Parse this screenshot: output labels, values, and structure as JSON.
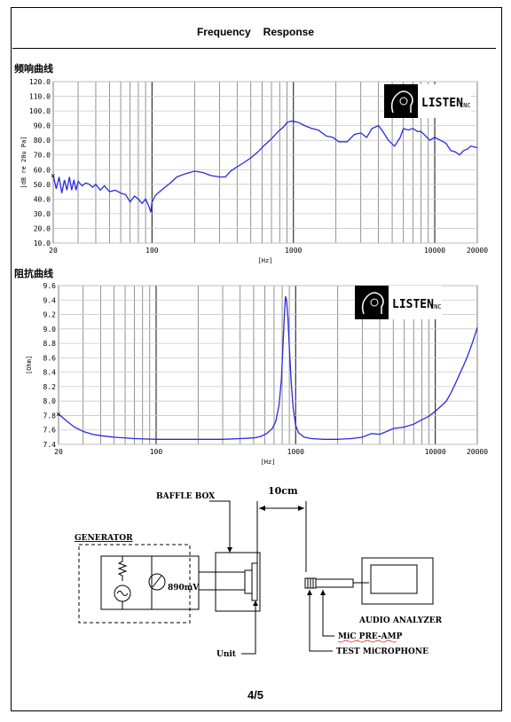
{
  "header": {
    "title_a": "Frequency",
    "title_b": "Response"
  },
  "section1": {
    "label": "频响曲线"
  },
  "section2": {
    "label": "阻抗曲线"
  },
  "logo": {
    "brand": "LISTEN",
    "suffix": "INC"
  },
  "chart_data": [
    {
      "type": "line",
      "ylabel": "[dB re 20u Pa]",
      "xlabel": "[Hz]",
      "x_scale": "log",
      "xlim": [
        20,
        20000
      ],
      "ylim": [
        10,
        120
      ],
      "xticks": [
        20,
        100,
        1000,
        10000,
        20000
      ],
      "xtick_labels": [
        "20",
        "100",
        "1000",
        "10000",
        "20000"
      ],
      "yticks": [
        10,
        20,
        30,
        40,
        50,
        60,
        70,
        80,
        90,
        100,
        110,
        120
      ],
      "ytick_labels": [
        "10.0",
        "20.0",
        "30.0",
        "40.0",
        "50.0",
        "60.0",
        "70.0",
        "80.0",
        "90.0",
        "100.0",
        "110.0",
        "120.0"
      ],
      "grid": true,
      "series": [
        {
          "color": "#2a2ae0",
          "points": [
            [
              20,
              56
            ],
            [
              21,
              47
            ],
            [
              22,
              55
            ],
            [
              23,
              44
            ],
            [
              24,
              53
            ],
            [
              25,
              46
            ],
            [
              26,
              55
            ],
            [
              27,
              46
            ],
            [
              28,
              53
            ],
            [
              29,
              46
            ],
            [
              30,
              52
            ],
            [
              32,
              49
            ],
            [
              34,
              51
            ],
            [
              36,
              50
            ],
            [
              38,
              48
            ],
            [
              40,
              50
            ],
            [
              43,
              46
            ],
            [
              46,
              49
            ],
            [
              50,
              45
            ],
            [
              55,
              46
            ],
            [
              60,
              44
            ],
            [
              65,
              43
            ],
            [
              70,
              38
            ],
            [
              75,
              42
            ],
            [
              80,
              40
            ],
            [
              85,
              37
            ],
            [
              90,
              40
            ],
            [
              95,
              35
            ],
            [
              98,
              31
            ],
            [
              100,
              38
            ],
            [
              105,
              42
            ],
            [
              110,
              44
            ],
            [
              120,
              47
            ],
            [
              135,
              51
            ],
            [
              150,
              55
            ],
            [
              170,
              57
            ],
            [
              200,
              59
            ],
            [
              230,
              58
            ],
            [
              260,
              56
            ],
            [
              300,
              55
            ],
            [
              330,
              55
            ],
            [
              360,
              59
            ],
            [
              400,
              62
            ],
            [
              450,
              65
            ],
            [
              500,
              68
            ],
            [
              560,
              72
            ],
            [
              630,
              77
            ],
            [
              700,
              81
            ],
            [
              780,
              86
            ],
            [
              850,
              89
            ],
            [
              900,
              92
            ],
            [
              950,
              93
            ],
            [
              1000,
              93
            ],
            [
              1100,
              92
            ],
            [
              1200,
              90
            ],
            [
              1350,
              88
            ],
            [
              1500,
              87
            ],
            [
              1700,
              83
            ],
            [
              1900,
              82
            ],
            [
              2100,
              79
            ],
            [
              2400,
              79
            ],
            [
              2700,
              84
            ],
            [
              3000,
              85
            ],
            [
              3300,
              82
            ],
            [
              3600,
              88
            ],
            [
              4000,
              90
            ],
            [
              4300,
              86
            ],
            [
              4700,
              80
            ],
            [
              5200,
              76
            ],
            [
              5700,
              82
            ],
            [
              6000,
              88
            ],
            [
              6500,
              87
            ],
            [
              7000,
              88
            ],
            [
              7600,
              86
            ],
            [
              8000,
              86
            ],
            [
              8600,
              83
            ],
            [
              9200,
              80
            ],
            [
              10000,
              82
            ],
            [
              11000,
              80
            ],
            [
              12000,
              78
            ],
            [
              13000,
              73
            ],
            [
              14000,
              72
            ],
            [
              15000,
              70
            ],
            [
              16000,
              73
            ],
            [
              17000,
              74
            ],
            [
              18000,
              76
            ],
            [
              20000,
              75
            ]
          ]
        }
      ]
    },
    {
      "type": "line",
      "ylabel": "[Ohm]",
      "xlabel": "[Hz]",
      "x_scale": "log",
      "xlim": [
        20,
        20000
      ],
      "ylim": [
        7.4,
        9.6
      ],
      "xticks": [
        20,
        100,
        1000,
        10000,
        20000
      ],
      "xtick_labels": [
        "20",
        "100",
        "1000",
        "10000",
        "20000"
      ],
      "yticks": [
        7.4,
        7.6,
        7.8,
        8.0,
        8.2,
        8.4,
        8.6,
        8.8,
        9.0,
        9.2,
        9.4,
        9.6
      ],
      "ytick_labels": [
        "7.4",
        "7.6",
        "7.8",
        "8.0",
        "8.2",
        "8.4",
        "8.6",
        "8.8",
        "9.0",
        "9.2",
        "9.4",
        "9.6"
      ],
      "grid": true,
      "series": [
        {
          "color": "#2a2ae0",
          "points": [
            [
              20,
              7.82
            ],
            [
              23,
              7.72
            ],
            [
              26,
              7.64
            ],
            [
              30,
              7.58
            ],
            [
              35,
              7.54
            ],
            [
              40,
              7.52
            ],
            [
              50,
              7.5
            ],
            [
              70,
              7.48
            ],
            [
              100,
              7.47
            ],
            [
              150,
              7.47
            ],
            [
              200,
              7.47
            ],
            [
              300,
              7.47
            ],
            [
              400,
              7.48
            ],
            [
              500,
              7.49
            ],
            [
              560,
              7.51
            ],
            [
              620,
              7.55
            ],
            [
              680,
              7.62
            ],
            [
              720,
              7.72
            ],
            [
              760,
              7.95
            ],
            [
              790,
              8.3
            ],
            [
              810,
              8.75
            ],
            [
              830,
              9.2
            ],
            [
              845,
              9.45
            ],
            [
              860,
              9.4
            ],
            [
              880,
              9.15
            ],
            [
              900,
              8.75
            ],
            [
              930,
              8.25
            ],
            [
              960,
              7.9
            ],
            [
              1000,
              7.66
            ],
            [
              1050,
              7.56
            ],
            [
              1150,
              7.5
            ],
            [
              1300,
              7.48
            ],
            [
              1600,
              7.47
            ],
            [
              2000,
              7.47
            ],
            [
              2500,
              7.48
            ],
            [
              3000,
              7.5
            ],
            [
              3500,
              7.55
            ],
            [
              4000,
              7.54
            ],
            [
              4500,
              7.58
            ],
            [
              5000,
              7.62
            ],
            [
              6000,
              7.64
            ],
            [
              7000,
              7.68
            ],
            [
              8000,
              7.74
            ],
            [
              9000,
              7.79
            ],
            [
              10000,
              7.86
            ],
            [
              11000,
              7.93
            ],
            [
              12000,
              8.0
            ],
            [
              13000,
              8.12
            ],
            [
              14000,
              8.25
            ],
            [
              15000,
              8.38
            ],
            [
              16000,
              8.5
            ],
            [
              17000,
              8.62
            ],
            [
              18000,
              8.75
            ],
            [
              19000,
              8.88
            ],
            [
              20000,
              9.02
            ]
          ]
        }
      ]
    }
  ],
  "diagram": {
    "generator": "GENERATOR",
    "baffle_box": "BAFFLE BOX",
    "distance": "10cm",
    "voltage": "890mV",
    "unit": "Unit",
    "audio_analyzer": "AUDIO ANALYZER",
    "mic_pre_amp": "MiC PRE-AMP",
    "test_microphone": "TEST MiCROPHONE"
  },
  "footer": {
    "page": "4/5"
  }
}
